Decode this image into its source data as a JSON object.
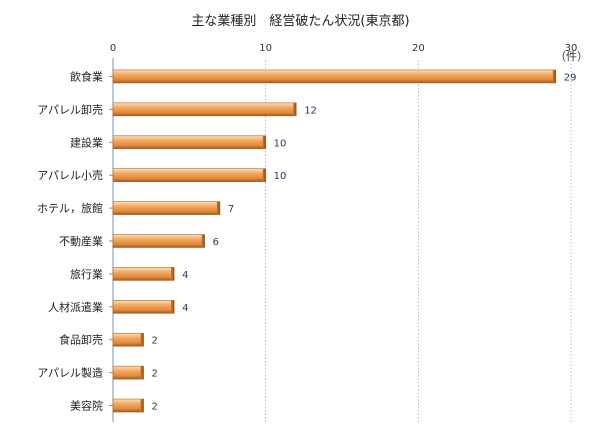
{
  "chart_data": {
    "type": "bar",
    "orientation": "horizontal",
    "title": "主な業種別　経営破たん状況(東京都)",
    "unit": "（件）",
    "categories": [
      "飲食業",
      "アパレル卸売",
      "建設業",
      "アパレル小売",
      "ホテル，旅館",
      "不動産業",
      "旅行業",
      "人材派遣業",
      "食品卸売",
      "アパレル製造",
      "美容院"
    ],
    "values": [
      29,
      12,
      10,
      10,
      7,
      6,
      4,
      4,
      2,
      2,
      2
    ],
    "xlim": [
      0,
      30
    ],
    "xticks": [
      0,
      10,
      20,
      30
    ],
    "grid": true,
    "bar_color": "#f0a050"
  }
}
